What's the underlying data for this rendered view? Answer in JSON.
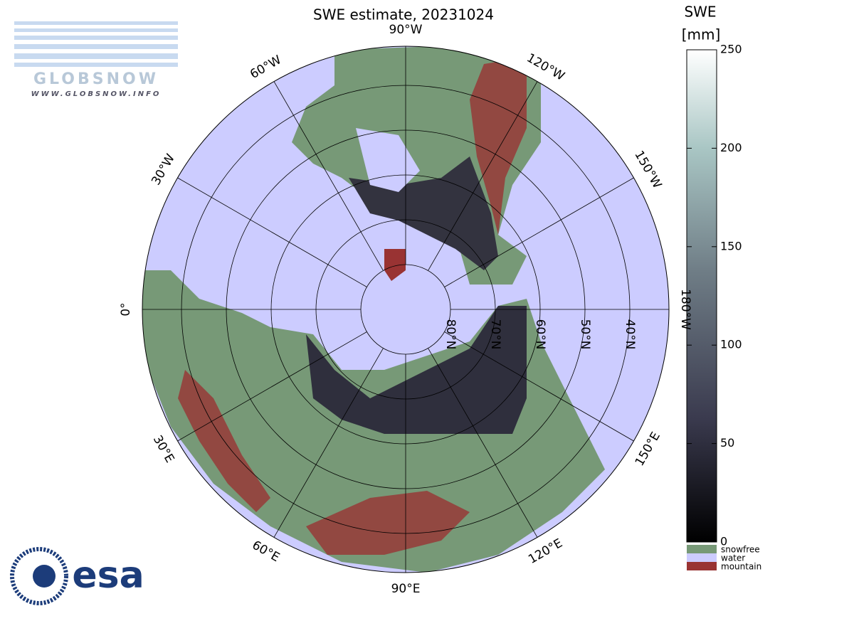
{
  "header": {
    "title": "SWE estimate, 20231024"
  },
  "logos": {
    "globsnow": "GLOBSNOW",
    "globsnow_url": "WWW.GLOBSNOW.INFO",
    "esa": "esa"
  },
  "map": {
    "meridians": [
      {
        "value": -90,
        "label": "90°W"
      },
      {
        "value": -60,
        "label": "60°W"
      },
      {
        "value": -30,
        "label": "30°W"
      },
      {
        "value": 0,
        "label": "0°"
      },
      {
        "value": -120,
        "label": "120°W"
      },
      {
        "value": -150,
        "label": "150°W"
      },
      {
        "value": 180,
        "label": "180°W"
      },
      {
        "value": 150,
        "label": "150°E"
      },
      {
        "value": 120,
        "label": "120°E"
      },
      {
        "value": 90,
        "label": "90°E"
      },
      {
        "value": 60,
        "label": "60°E"
      },
      {
        "value": 30,
        "label": "30°E"
      }
    ],
    "parallels": [
      {
        "value": 80,
        "label": "80°N"
      },
      {
        "value": 70,
        "label": "70°N"
      },
      {
        "value": 60,
        "label": "60°N"
      },
      {
        "value": 50,
        "label": "50°N"
      },
      {
        "value": 40,
        "label": "40°N"
      }
    ]
  },
  "colorbar": {
    "title": "SWE",
    "unit": "[mm]",
    "lim": [
      0,
      250
    ],
    "ticks": [
      0,
      50,
      100,
      150,
      200,
      250
    ],
    "legend": [
      {
        "label": "snowfree",
        "color": "#779977"
      },
      {
        "label": "water",
        "color": "#ccccff"
      },
      {
        "label": "mountain",
        "color": "#993333"
      }
    ]
  }
}
